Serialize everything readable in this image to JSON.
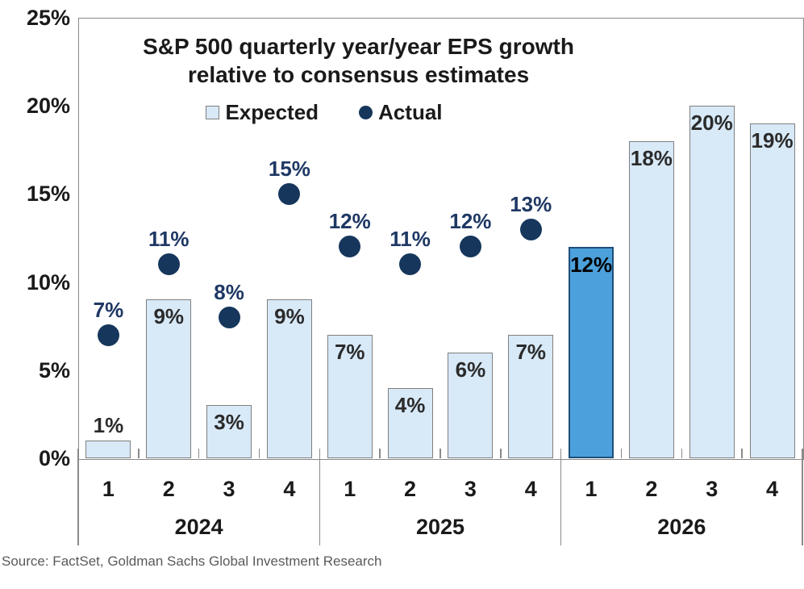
{
  "figure": {
    "title_line1": "S&P 500 quarterly year/year EPS growth",
    "title_line2": "relative to consensus estimates"
  },
  "legend": {
    "expected": "Expected",
    "actual": "Actual"
  },
  "source": "Source: FactSet, Goldman Sachs Global Investment Research",
  "chart_data": {
    "type": "bar",
    "title": "S&P 500 quarterly year/year EPS growth relative to consensus estimates",
    "legend_entries": [
      "Expected",
      "Actual"
    ],
    "legend_position": "top-center",
    "grid": false,
    "ylim": [
      0,
      25
    ],
    "yticks": [
      0,
      5,
      10,
      15,
      20,
      25
    ],
    "ytick_suffix": "%",
    "groups": [
      {
        "year": "2024",
        "quarters": [
          "1",
          "2",
          "3",
          "4"
        ]
      },
      {
        "year": "2025",
        "quarters": [
          "1",
          "2",
          "3",
          "4"
        ]
      },
      {
        "year": "2026",
        "quarters": [
          "1",
          "2",
          "3",
          "4"
        ]
      }
    ],
    "categories": [
      "2024 Q1",
      "2024 Q2",
      "2024 Q3",
      "2024 Q4",
      "2025 Q1",
      "2025 Q2",
      "2025 Q3",
      "2025 Q4",
      "2026 Q1",
      "2026 Q2",
      "2026 Q3",
      "2026 Q4"
    ],
    "series": [
      {
        "name": "Expected",
        "type": "bar",
        "values": [
          1,
          9,
          3,
          9,
          7,
          4,
          6,
          7,
          12,
          18,
          20,
          19
        ]
      },
      {
        "name": "Actual",
        "type": "scatter",
        "values": [
          7,
          11,
          8,
          15,
          12,
          11,
          12,
          13,
          null,
          null,
          null,
          null
        ]
      }
    ],
    "highlight": {
      "index": 8,
      "category": "2026 Q1"
    },
    "colors": {
      "expected_fill": "#D8E9F8",
      "expected_border": "#7F7F7F",
      "highlight_fill": "#4CA1DC",
      "highlight_border": "#1F4E79",
      "highlight_label": "#000000",
      "actual_dot": "#16365C",
      "actual_label": "#1F3864",
      "bar_label": "#2b2b2b",
      "axis": "#8a8a8a",
      "text": "#1a1a1a",
      "source_text": "#5a5a5a"
    }
  }
}
